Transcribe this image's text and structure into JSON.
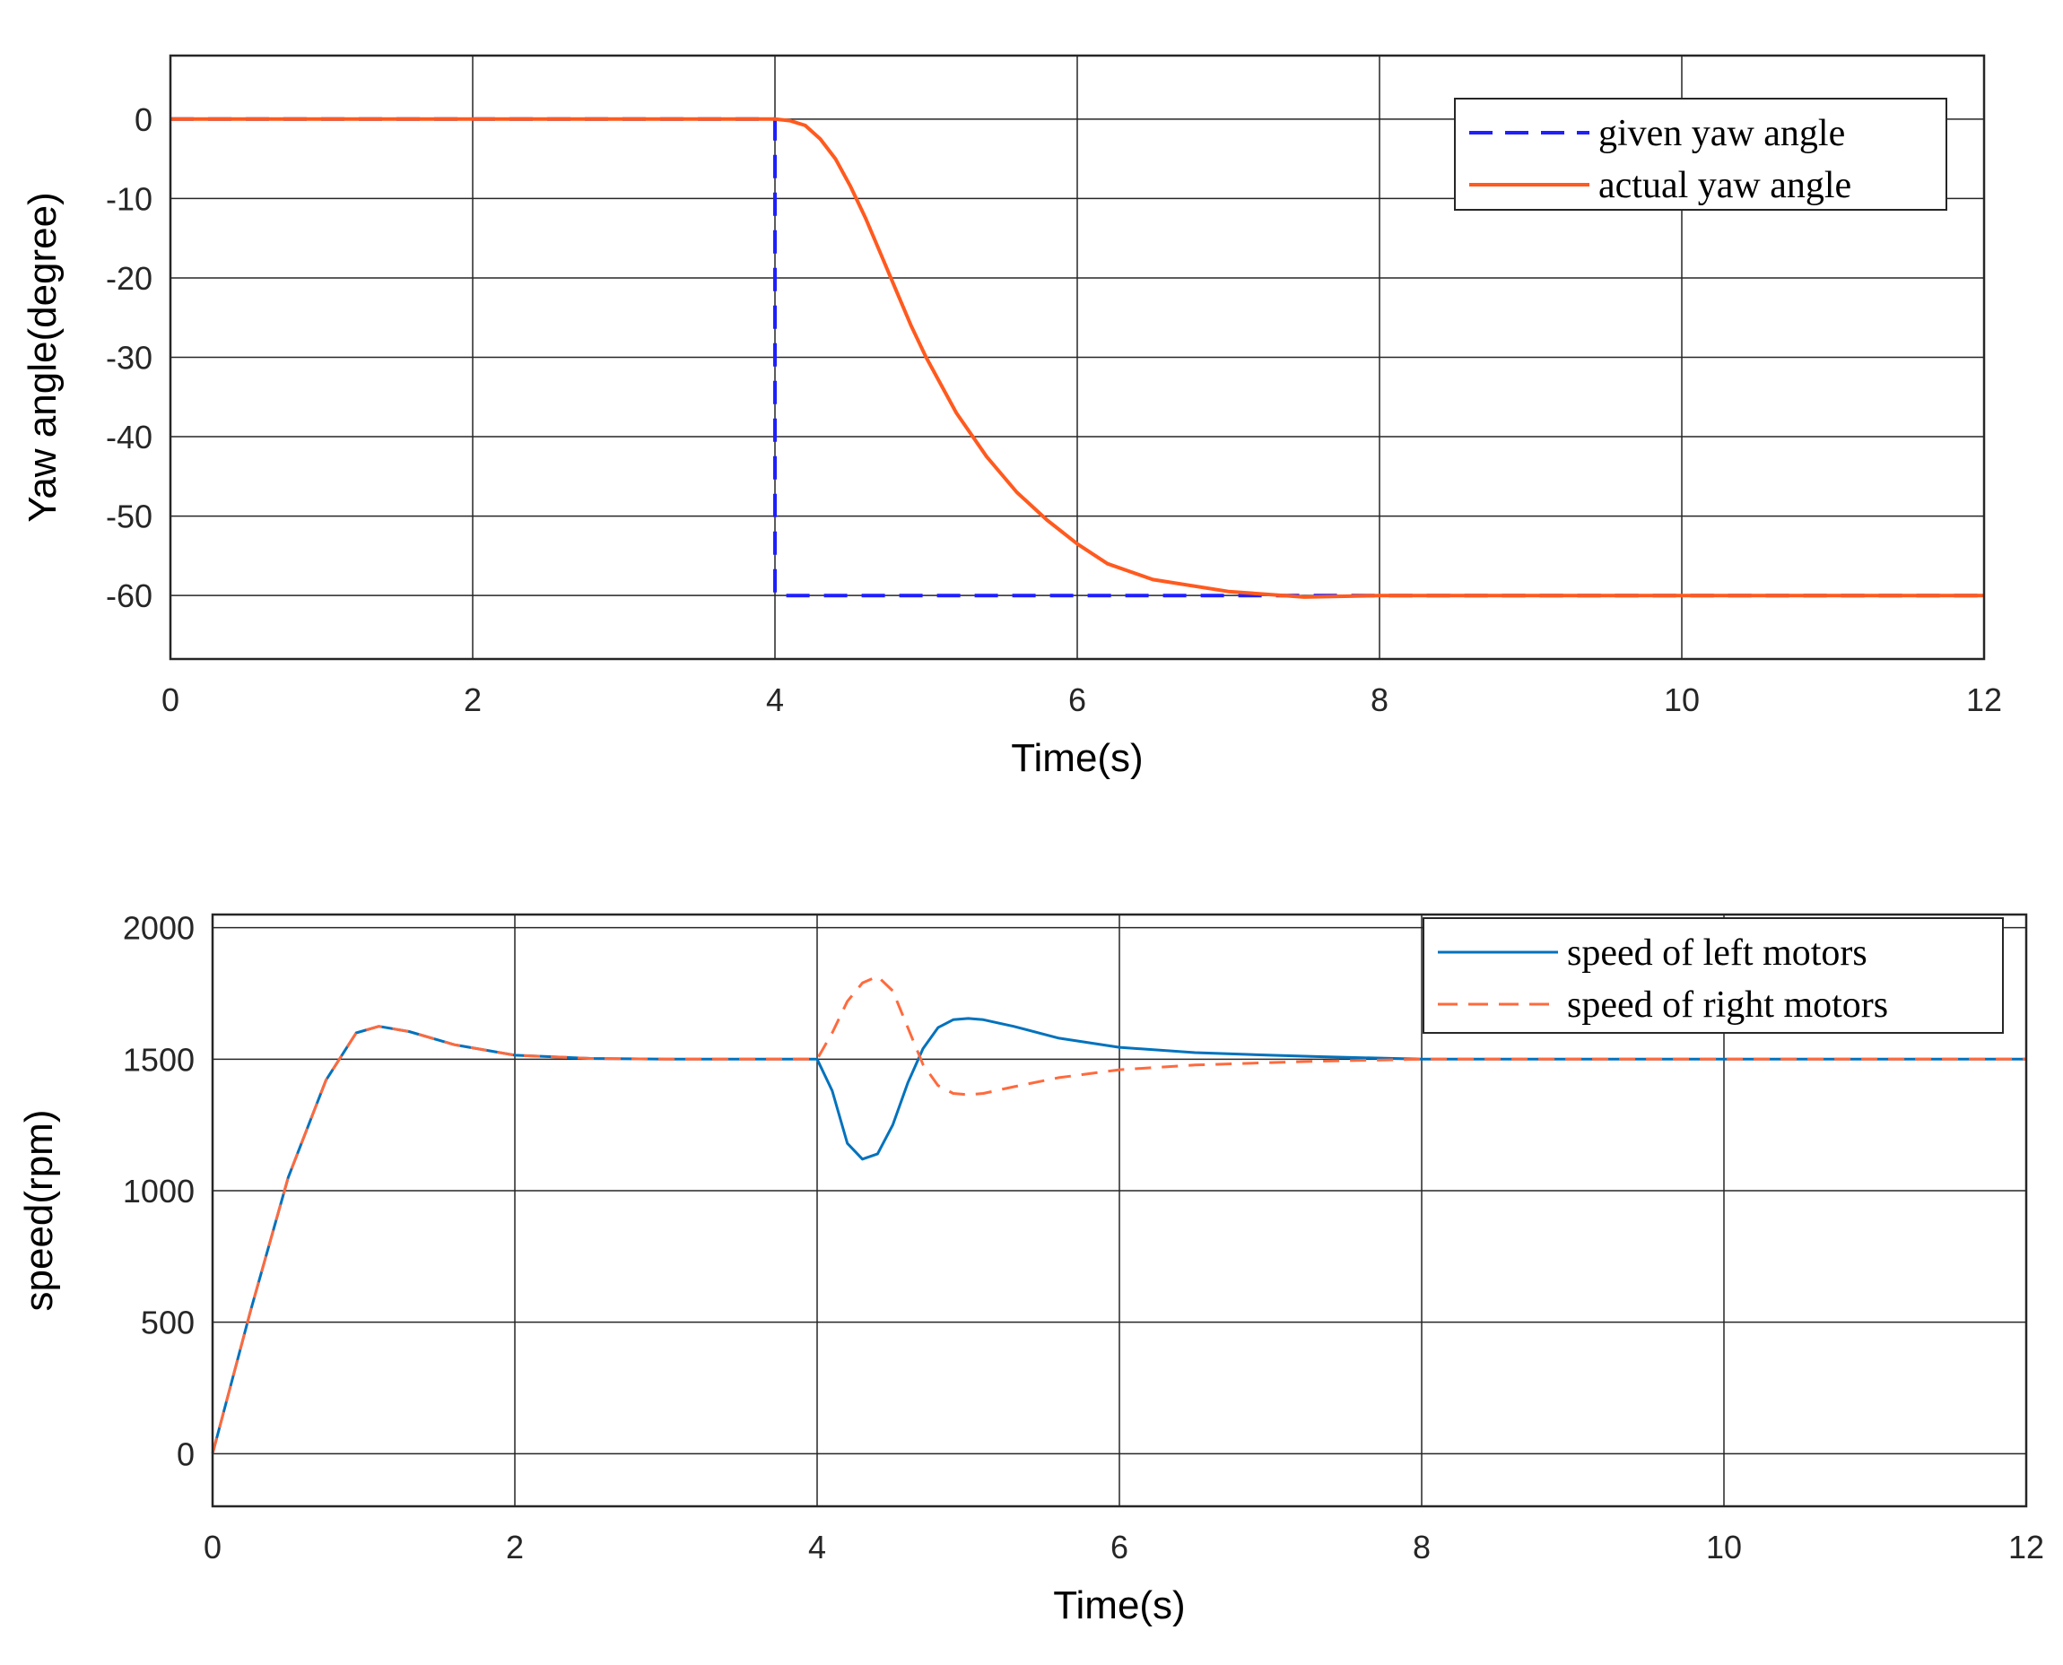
{
  "chart_data": [
    {
      "type": "line",
      "title": "",
      "xlabel": "Time(s)",
      "ylabel": "Yaw angle(degree)",
      "xlim": [
        0,
        12
      ],
      "ylim": [
        -68,
        8
      ],
      "xticks": [
        0,
        2,
        4,
        6,
        8,
        10,
        12
      ],
      "yticks": [
        0,
        -10,
        -20,
        -30,
        -40,
        -50,
        -60
      ],
      "grid": true,
      "legend_position": "top-right",
      "series": [
        {
          "name": "given yaw angle",
          "style": "dashed",
          "color": "#1f1fff",
          "x": [
            0,
            4,
            4,
            12
          ],
          "y": [
            0,
            0,
            -60,
            -60
          ]
        },
        {
          "name": "actual yaw angle",
          "style": "solid",
          "color": "#ff5a1f",
          "x": [
            0,
            4.0,
            4.1,
            4.2,
            4.3,
            4.4,
            4.5,
            4.6,
            4.7,
            4.8,
            4.9,
            5.0,
            5.2,
            5.4,
            5.6,
            5.8,
            6.0,
            6.2,
            6.5,
            7.0,
            7.5,
            8.0,
            9.0,
            10.0,
            12.0
          ],
          "y": [
            0,
            0,
            -0.2,
            -0.8,
            -2.5,
            -5,
            -8.5,
            -12.5,
            -17,
            -21.5,
            -26,
            -30,
            -37,
            -42.5,
            -47,
            -50.5,
            -53.5,
            -56,
            -58,
            -59.5,
            -60.2,
            -60,
            -60,
            -60,
            -60
          ]
        }
      ]
    },
    {
      "type": "line",
      "title": "",
      "xlabel": "Time(s)",
      "ylabel": "speed(rpm)",
      "xlim": [
        0,
        12
      ],
      "ylim": [
        -200,
        2050
      ],
      "xticks": [
        0,
        2,
        4,
        6,
        8,
        10,
        12
      ],
      "yticks": [
        0,
        500,
        1000,
        1500,
        2000
      ],
      "grid": true,
      "legend_position": "top-right",
      "series": [
        {
          "name": "speed of left motors",
          "style": "solid",
          "color": "#0072bd",
          "x": [
            0,
            0.25,
            0.5,
            0.75,
            0.95,
            1.1,
            1.3,
            1.6,
            2.0,
            2.5,
            3.0,
            4.0,
            4.1,
            4.2,
            4.3,
            4.4,
            4.5,
            4.6,
            4.7,
            4.8,
            4.9,
            5.0,
            5.1,
            5.3,
            5.6,
            6.0,
            6.5,
            7.0,
            7.3,
            8.0,
            12.0
          ],
          "y": [
            0,
            540,
            1050,
            1420,
            1600,
            1625,
            1605,
            1555,
            1515,
            1503,
            1500,
            1500,
            1380,
            1180,
            1120,
            1140,
            1250,
            1410,
            1540,
            1620,
            1650,
            1655,
            1650,
            1625,
            1580,
            1545,
            1525,
            1515,
            1510,
            1500,
            1500
          ]
        },
        {
          "name": "speed of right motors",
          "style": "dashed",
          "color": "#ff6a3d",
          "x": [
            0,
            0.25,
            0.5,
            0.75,
            0.95,
            1.1,
            1.3,
            1.6,
            2.0,
            2.5,
            3.0,
            4.0,
            4.1,
            4.2,
            4.3,
            4.4,
            4.5,
            4.6,
            4.7,
            4.8,
            4.9,
            5.0,
            5.1,
            5.3,
            5.6,
            6.0,
            6.5,
            7.0,
            7.3,
            8.0,
            12.0
          ],
          "y": [
            0,
            540,
            1050,
            1420,
            1600,
            1625,
            1605,
            1555,
            1515,
            1503,
            1500,
            1500,
            1600,
            1720,
            1790,
            1815,
            1760,
            1620,
            1480,
            1400,
            1370,
            1365,
            1370,
            1395,
            1430,
            1460,
            1478,
            1487,
            1492,
            1500,
            1500
          ]
        }
      ]
    }
  ]
}
